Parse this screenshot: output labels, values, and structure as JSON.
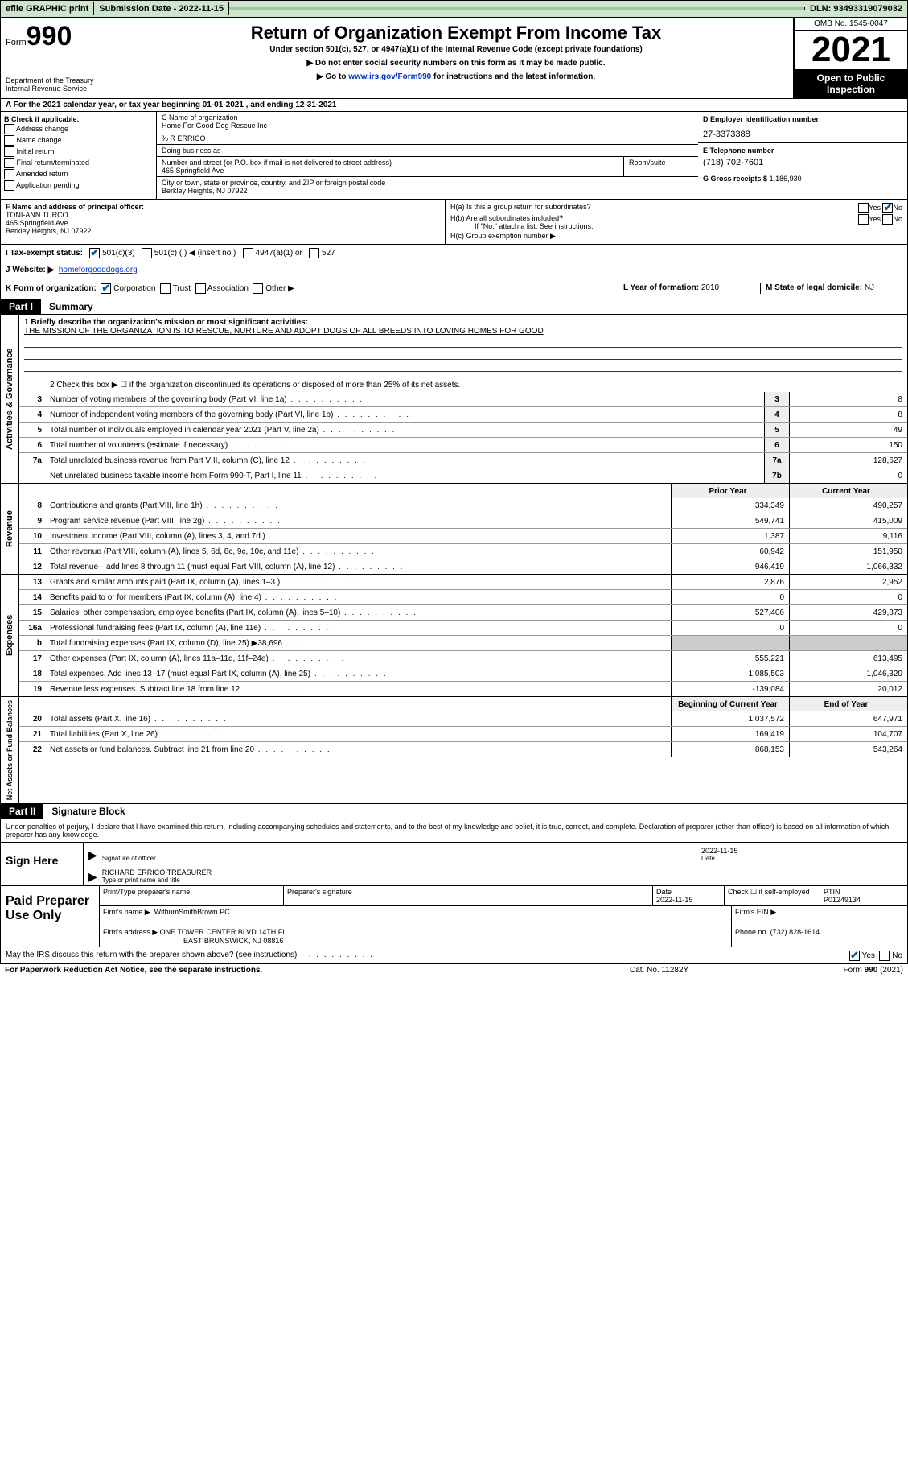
{
  "topbar": {
    "efile": "efile GRAPHIC print",
    "submission": "Submission Date - 2022-11-15",
    "dln": "DLN: 93493319079032"
  },
  "header": {
    "form_prefix": "Form",
    "form_num": "990",
    "dept": "Department of the Treasury",
    "irs": "Internal Revenue Service",
    "title": "Return of Organization Exempt From Income Tax",
    "sub": "Under section 501(c), 527, or 4947(a)(1) of the Internal Revenue Code (except private foundations)",
    "note1": "▶ Do not enter social security numbers on this form as it may be made public.",
    "note2_pre": "▶ Go to ",
    "note2_link": "www.irs.gov/Form990",
    "note2_post": " for instructions and the latest information.",
    "omb": "OMB No. 1545-0047",
    "year": "2021",
    "inspect": "Open to Public Inspection"
  },
  "taxyear": "A For the 2021 calendar year, or tax year beginning 01-01-2021   , and ending 12-31-2021",
  "B": {
    "label": "B Check if applicable:",
    "items": [
      "Address change",
      "Name change",
      "Initial return",
      "Final return/terminated",
      "Amended return",
      "Application pending"
    ]
  },
  "C": {
    "name_lbl": "C Name of organization",
    "name": "Home For Good Dog Rescue Inc",
    "care": "% R ERRICO",
    "dba_lbl": "Doing business as",
    "addr_lbl": "Number and street (or P.O. box if mail is not delivered to street address)",
    "addr": "465 Springfield Ave",
    "suite_lbl": "Room/suite",
    "city_lbl": "City or town, state or province, country, and ZIP or foreign postal code",
    "city": "Berkley Heights, NJ  07922"
  },
  "D": {
    "ein_lbl": "D Employer identification number",
    "ein": "27-3373388",
    "tel_lbl": "E Telephone number",
    "tel": "(718) 702-7601",
    "gross_lbl": "G Gross receipts $",
    "gross": "1,186,930"
  },
  "F": {
    "lbl": "F Name and address of principal officer:",
    "name": "TONI-ANN TURCO",
    "addr1": "465 Springfield Ave",
    "addr2": "Berkley Heights, NJ  07922"
  },
  "H": {
    "a": "H(a)  Is this a group return for subordinates?",
    "a_no": "No",
    "b": "H(b)  Are all subordinates included?",
    "b_note": "If \"No,\" attach a list. See instructions.",
    "c": "H(c)  Group exemption number ▶"
  },
  "I": {
    "lbl": "I   Tax-exempt status:",
    "opts": [
      "501(c)(3)",
      "501(c) (  ) ◀ (insert no.)",
      "4947(a)(1) or",
      "527"
    ]
  },
  "J": {
    "lbl": "J   Website: ▶",
    "val": "homeforgooddogs.org"
  },
  "K": {
    "lbl": "K Form of organization:",
    "opts": [
      "Corporation",
      "Trust",
      "Association",
      "Other ▶"
    ]
  },
  "L": {
    "lbl": "L Year of formation:",
    "val": "2010"
  },
  "M": {
    "lbl": "M State of legal domicile:",
    "val": "NJ"
  },
  "part1": {
    "num": "Part I",
    "title": "Summary"
  },
  "mission": {
    "lbl": "1  Briefly describe the organization's mission or most significant activities:",
    "text": "THE MISSION OF THE ORGANIZATION IS TO RESCUE, NURTURE AND ADOPT DOGS OF ALL BREEDS INTO LOVING HOMES FOR GOOD"
  },
  "line2": "2   Check this box ▶ ☐  if the organization discontinued its operations or disposed of more than 25% of its net assets.",
  "gov_lines": [
    {
      "n": "3",
      "d": "Number of voting members of the governing body (Part VI, line 1a)",
      "b": "3",
      "v": "8"
    },
    {
      "n": "4",
      "d": "Number of independent voting members of the governing body (Part VI, line 1b)",
      "b": "4",
      "v": "8"
    },
    {
      "n": "5",
      "d": "Total number of individuals employed in calendar year 2021 (Part V, line 2a)",
      "b": "5",
      "v": "49"
    },
    {
      "n": "6",
      "d": "Total number of volunteers (estimate if necessary)",
      "b": "6",
      "v": "150"
    },
    {
      "n": "7a",
      "d": "Total unrelated business revenue from Part VIII, column (C), line 12",
      "b": "7a",
      "v": "128,627"
    },
    {
      "n": "",
      "d": "Net unrelated business taxable income from Form 990-T, Part I, line 11",
      "b": "7b",
      "v": "0"
    }
  ],
  "rev_hdr": {
    "py": "Prior Year",
    "cy": "Current Year"
  },
  "rev_lines": [
    {
      "n": "8",
      "d": "Contributions and grants (Part VIII, line 1h)",
      "py": "334,349",
      "cy": "490,257"
    },
    {
      "n": "9",
      "d": "Program service revenue (Part VIII, line 2g)",
      "py": "549,741",
      "cy": "415,009"
    },
    {
      "n": "10",
      "d": "Investment income (Part VIII, column (A), lines 3, 4, and 7d )",
      "py": "1,387",
      "cy": "9,116"
    },
    {
      "n": "11",
      "d": "Other revenue (Part VIII, column (A), lines 5, 6d, 8c, 9c, 10c, and 11e)",
      "py": "60,942",
      "cy": "151,950"
    },
    {
      "n": "12",
      "d": "Total revenue—add lines 8 through 11 (must equal Part VIII, column (A), line 12)",
      "py": "946,419",
      "cy": "1,066,332"
    }
  ],
  "exp_lines": [
    {
      "n": "13",
      "d": "Grants and similar amounts paid (Part IX, column (A), lines 1–3 )",
      "py": "2,876",
      "cy": "2,952"
    },
    {
      "n": "14",
      "d": "Benefits paid to or for members (Part IX, column (A), line 4)",
      "py": "0",
      "cy": "0"
    },
    {
      "n": "15",
      "d": "Salaries, other compensation, employee benefits (Part IX, column (A), lines 5–10)",
      "py": "527,406",
      "cy": "429,873"
    },
    {
      "n": "16a",
      "d": "Professional fundraising fees (Part IX, column (A), line 11e)",
      "py": "0",
      "cy": "0"
    },
    {
      "n": "b",
      "d": "Total fundraising expenses (Part IX, column (D), line 25) ▶38,696",
      "py": "",
      "cy": "",
      "shade": true
    },
    {
      "n": "17",
      "d": "Other expenses (Part IX, column (A), lines 11a–11d, 11f–24e)",
      "py": "555,221",
      "cy": "613,495"
    },
    {
      "n": "18",
      "d": "Total expenses. Add lines 13–17 (must equal Part IX, column (A), line 25)",
      "py": "1,085,503",
      "cy": "1,046,320"
    },
    {
      "n": "19",
      "d": "Revenue less expenses. Subtract line 18 from line 12",
      "py": "-139,084",
      "cy": "20,012"
    }
  ],
  "na_hdr": {
    "py": "Beginning of Current Year",
    "cy": "End of Year"
  },
  "na_lines": [
    {
      "n": "20",
      "d": "Total assets (Part X, line 16)",
      "py": "1,037,572",
      "cy": "647,971"
    },
    {
      "n": "21",
      "d": "Total liabilities (Part X, line 26)",
      "py": "169,419",
      "cy": "104,707"
    },
    {
      "n": "22",
      "d": "Net assets or fund balances. Subtract line 21 from line 20",
      "py": "868,153",
      "cy": "543,264"
    }
  ],
  "part2": {
    "num": "Part II",
    "title": "Signature Block"
  },
  "sig": {
    "penalty": "Under penalties of perjury, I declare that I have examined this return, including accompanying schedules and statements, and to the best of my knowledge and belief, it is true, correct, and complete. Declaration of preparer (other than officer) is based on all information of which preparer has any knowledge.",
    "sign_here": "Sign Here",
    "sig_officer": "Signature of officer",
    "date": "Date",
    "date_val": "2022-11-15",
    "name": "RICHARD ERRICO  TREASURER",
    "name_lbl": "Type or print name and title"
  },
  "prep": {
    "lbl": "Paid Preparer Use Only",
    "h1": "Print/Type preparer's name",
    "h2": "Preparer's signature",
    "h3": "Date",
    "h3v": "2022-11-15",
    "h4": "Check ☐ if self-employed",
    "h5": "PTIN",
    "h5v": "P01249134",
    "firm_lbl": "Firm's name    ▶",
    "firm": "WithumSmithBrown PC",
    "ein_lbl": "Firm's EIN ▶",
    "addr_lbl": "Firm's address ▶",
    "addr1": "ONE TOWER CENTER BLVD 14TH FL",
    "addr2": "EAST BRUNSWICK, NJ  08816",
    "phone_lbl": "Phone no.",
    "phone": "(732) 828-1614"
  },
  "discuss": "May the IRS discuss this return with the preparer shown above? (see instructions)",
  "footer": {
    "l": "For Paperwork Reduction Act Notice, see the separate instructions.",
    "m": "Cat. No. 11282Y",
    "r": "Form 990 (2021)"
  },
  "vlabels": {
    "gov": "Activities & Governance",
    "rev": "Revenue",
    "exp": "Expenses",
    "na": "Net Assets or Fund Balances"
  }
}
